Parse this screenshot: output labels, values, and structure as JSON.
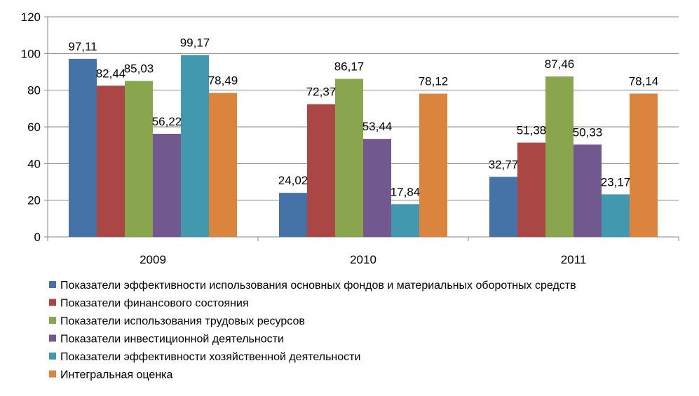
{
  "chart_data": {
    "type": "bar",
    "title": "",
    "xlabel": "",
    "ylabel": "",
    "categories": [
      "2009",
      "2010",
      "2011"
    ],
    "ylim": [
      0,
      120
    ],
    "yticks": [
      0,
      20,
      40,
      60,
      80,
      100,
      120
    ],
    "grid": true,
    "legend_position": "bottom",
    "series": [
      {
        "name": "Показатели эффективности использования основных фондов и материальных оборотных средств",
        "color": "#4572A7",
        "values": [
          97.11,
          24.02,
          32.77
        ],
        "labels": [
          "97,11",
          "24,02",
          "32,77"
        ]
      },
      {
        "name": "Показатели финансового состояния",
        "color": "#AA4643",
        "values": [
          82.44,
          72.37,
          51.38
        ],
        "labels": [
          "82,44",
          "72,37",
          "51,38"
        ]
      },
      {
        "name": "Показатели использования трудовых ресурсов",
        "color": "#89A54E",
        "values": [
          85.03,
          86.17,
          87.46
        ],
        "labels": [
          "85,03",
          "86,17",
          "87,46"
        ]
      },
      {
        "name": "Показатели инвестиционной деятельности",
        "color": "#71588F",
        "values": [
          56.22,
          53.44,
          50.33
        ],
        "labels": [
          "56,22",
          "53,44",
          "50,33"
        ]
      },
      {
        "name": "Показатели эффективности хозяйственной деятельности",
        "color": "#4198AF",
        "values": [
          99.17,
          17.84,
          23.17
        ],
        "labels": [
          "99,17",
          "17,84",
          "23,17"
        ]
      },
      {
        "name": "Интегральная оценка",
        "color": "#DB843D",
        "values": [
          78.49,
          78.12,
          78.14
        ],
        "labels": [
          "78,49",
          "78,12",
          "78,14"
        ]
      }
    ]
  }
}
